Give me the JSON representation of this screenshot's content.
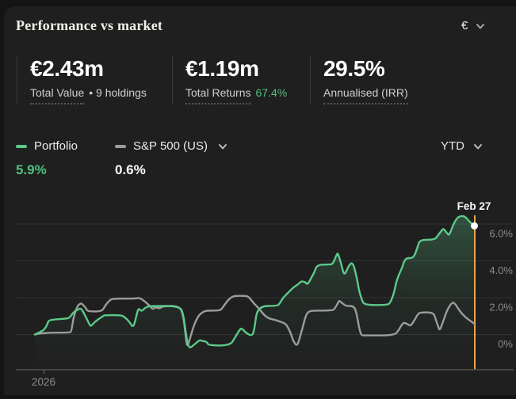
{
  "header": {
    "title": "Performance vs market",
    "currency": "€"
  },
  "stats": [
    {
      "value": "€2.43m",
      "label": "Total Value",
      "detail": "• 9 holdings"
    },
    {
      "value": "€1.19m",
      "label": "Total Returns",
      "highlight": "67.4%"
    },
    {
      "value": "29.5%",
      "label": "Annualised (IRR)"
    }
  ],
  "legend": {
    "portfolio": {
      "label": "Portfolio",
      "value": "5.9%"
    },
    "benchmark": {
      "label": "S&P 500 (US)",
      "value": "0.6%"
    },
    "period": "YTD"
  },
  "colors": {
    "accent_green": "#50c17c",
    "line_green": "#5cc98a",
    "line_gray": "#9c9c9c",
    "marker_orange": "#e7a44c",
    "grid": "#323232",
    "axis": "#505050",
    "axis_text": "#8c8c8c"
  },
  "chart_data": {
    "type": "line",
    "period": "YTD",
    "x_axis": {
      "start_label": "2026",
      "unit": "percent of period (Jan 1 – Feb 27)"
    },
    "y_axis": {
      "unit": "%",
      "ticks": [
        {
          "value": 6,
          "label": "6.0%"
        },
        {
          "value": 4,
          "label": "4.0%"
        },
        {
          "value": 2,
          "label": "2.0%"
        },
        {
          "value": 0,
          "label": "0%"
        }
      ]
    },
    "ylim": [
      -1.9,
      7.8
    ],
    "grid": true,
    "legend_position": "top-left",
    "marker": {
      "label": "Feb 27",
      "series": "Portfolio",
      "value": 5.9
    },
    "series": [
      {
        "name": "Portfolio",
        "color": "#5cc98a",
        "final_value_pct": 5.9,
        "area_fill": true,
        "points": [
          [
            0,
            0
          ],
          [
            1.4,
            0.15
          ],
          [
            2.3,
            0.3
          ],
          [
            2.9,
            0.6
          ],
          [
            3.2,
            0.8
          ],
          [
            6.9,
            0.85
          ],
          [
            7.9,
            0.9
          ],
          [
            8.7,
            1.2
          ],
          [
            10.1,
            1.4
          ],
          [
            10.6,
            1.4
          ],
          [
            11.4,
            1.05
          ],
          [
            12.5,
            0.5
          ],
          [
            12.8,
            0.45
          ],
          [
            13.7,
            0.7
          ],
          [
            15.5,
            1.0
          ],
          [
            15.9,
            1.05
          ],
          [
            19.7,
            1.05
          ],
          [
            20.4,
            0.95
          ],
          [
            21.5,
            0.7
          ],
          [
            22.4,
            0.35
          ],
          [
            23.1,
            1.0
          ],
          [
            23.6,
            1.45
          ],
          [
            24.2,
            1.25
          ],
          [
            24.9,
            1.4
          ],
          [
            25.5,
            1.5
          ],
          [
            26.4,
            1.55
          ],
          [
            33,
            1.55
          ],
          [
            33.8,
            1.1
          ],
          [
            34.3,
            0.2
          ],
          [
            35,
            -0.8
          ],
          [
            36.3,
            -0.55
          ],
          [
            37.5,
            -0.3
          ],
          [
            38.1,
            -0.35
          ],
          [
            39.2,
            -0.4
          ],
          [
            39.5,
            -0.6
          ],
          [
            44.4,
            -0.6
          ],
          [
            45.5,
            -0.2
          ],
          [
            46.6,
            0.25
          ],
          [
            47.1,
            0.35
          ],
          [
            48,
            0.1
          ],
          [
            49.5,
            -0.1
          ],
          [
            50,
            0.3
          ],
          [
            50.7,
            1.55
          ],
          [
            55.2,
            1.55
          ],
          [
            55.8,
            1.7
          ],
          [
            56.5,
            2.0
          ],
          [
            57.6,
            2.25
          ],
          [
            58.8,
            2.55
          ],
          [
            60.1,
            2.75
          ],
          [
            60.6,
            2.9
          ],
          [
            61.6,
            2.85
          ],
          [
            62.1,
            2.7
          ],
          [
            63,
            3.1
          ],
          [
            63.7,
            3.4
          ],
          [
            64.3,
            3.8
          ],
          [
            67.3,
            3.8
          ],
          [
            67.9,
            3.85
          ],
          [
            68.8,
            4.4
          ],
          [
            69,
            4.4
          ],
          [
            69.7,
            3.9
          ],
          [
            70.2,
            3.4
          ],
          [
            70.6,
            3.25
          ],
          [
            71.5,
            3.75
          ],
          [
            72.4,
            3.95
          ],
          [
            73.3,
            3.1
          ],
          [
            73.8,
            2.4
          ],
          [
            74.5,
            1.85
          ],
          [
            75.1,
            1.6
          ],
          [
            80.1,
            1.6
          ],
          [
            80.9,
            1.7
          ],
          [
            81.8,
            2.25
          ],
          [
            82.3,
            2.85
          ],
          [
            82.9,
            3.25
          ],
          [
            83.6,
            3.6
          ],
          [
            84.1,
            4.0
          ],
          [
            84.7,
            4.15
          ],
          [
            85.9,
            4.15
          ],
          [
            86.5,
            4.3
          ],
          [
            87.2,
            4.8
          ],
          [
            87.7,
            5.15
          ],
          [
            91,
            5.15
          ],
          [
            91.7,
            5.35
          ],
          [
            92.8,
            5.7
          ],
          [
            93.1,
            5.75
          ],
          [
            94,
            5.45
          ],
          [
            94.4,
            5.4
          ],
          [
            95.3,
            6.0
          ],
          [
            96.2,
            6.35
          ],
          [
            97.1,
            6.45
          ],
          [
            98,
            6.4
          ],
          [
            98.9,
            6.15
          ],
          [
            100,
            5.9
          ]
        ]
      },
      {
        "name": "S&P 500 (US)",
        "color": "#9c9c9c",
        "final_value_pct": 0.6,
        "area_fill": false,
        "points": [
          [
            0,
            0
          ],
          [
            1.8,
            0.1
          ],
          [
            7.9,
            0.1
          ],
          [
            8.3,
            0.15
          ],
          [
            8.8,
            0.95
          ],
          [
            9.6,
            1.5
          ],
          [
            10.1,
            1.65
          ],
          [
            10.6,
            1.7
          ],
          [
            11.4,
            1.5
          ],
          [
            11.9,
            1.3
          ],
          [
            12.5,
            1.25
          ],
          [
            15.2,
            1.25
          ],
          [
            15.9,
            1.5
          ],
          [
            16.4,
            1.7
          ],
          [
            17,
            1.85
          ],
          [
            17.7,
            1.95
          ],
          [
            23.1,
            1.95
          ],
          [
            23.6,
            2.0
          ],
          [
            24.5,
            1.9
          ],
          [
            25.5,
            1.7
          ],
          [
            26.2,
            1.55
          ],
          [
            26.9,
            1.35
          ],
          [
            27.4,
            1.5
          ],
          [
            28.3,
            1.4
          ],
          [
            29.2,
            1.55
          ],
          [
            33,
            1.55
          ],
          [
            33.8,
            1.0
          ],
          [
            34.3,
            0.0
          ],
          [
            34.7,
            -0.75
          ],
          [
            35.4,
            -0.15
          ],
          [
            36.3,
            0.55
          ],
          [
            37.2,
            1.0
          ],
          [
            38.1,
            1.2
          ],
          [
            39,
            1.3
          ],
          [
            42.1,
            1.3
          ],
          [
            42.6,
            1.4
          ],
          [
            43.9,
            1.85
          ],
          [
            44.9,
            2.05
          ],
          [
            45.7,
            2.1
          ],
          [
            48,
            2.1
          ],
          [
            48.7,
            2.05
          ],
          [
            49.8,
            1.7
          ],
          [
            51.1,
            1.4
          ],
          [
            52.2,
            1.05
          ],
          [
            53.4,
            0.85
          ],
          [
            54.7,
            0.8
          ],
          [
            55.8,
            0.7
          ],
          [
            57,
            0.6
          ],
          [
            57.6,
            0.4
          ],
          [
            58.3,
            0.05
          ],
          [
            58.8,
            -0.35
          ],
          [
            59.7,
            -0.65
          ],
          [
            60.3,
            -0.2
          ],
          [
            61,
            0.4
          ],
          [
            61.6,
            0.95
          ],
          [
            62.1,
            1.2
          ],
          [
            63,
            1.3
          ],
          [
            67.9,
            1.3
          ],
          [
            68.4,
            1.45
          ],
          [
            69.1,
            1.75
          ],
          [
            69.3,
            1.85
          ],
          [
            70,
            1.7
          ],
          [
            70.6,
            1.6
          ],
          [
            70.9,
            1.55
          ],
          [
            72.7,
            1.55
          ],
          [
            73.3,
            1.1
          ],
          [
            73.8,
            0.4
          ],
          [
            74.2,
            0.05
          ],
          [
            74.5,
            -0.05
          ],
          [
            75.1,
            -0.05
          ],
          [
            81.9,
            -0.05
          ],
          [
            82.9,
            0.25
          ],
          [
            83.6,
            0.55
          ],
          [
            84.1,
            0.65
          ],
          [
            85,
            0.55
          ],
          [
            85.6,
            0.45
          ],
          [
            86.5,
            0.8
          ],
          [
            87.2,
            1.1
          ],
          [
            87.7,
            1.2
          ],
          [
            90.8,
            1.2
          ],
          [
            91.3,
            0.8
          ],
          [
            91.9,
            0.4
          ],
          [
            92.2,
            0.2
          ],
          [
            93.1,
            0.8
          ],
          [
            94,
            1.4
          ],
          [
            94.9,
            1.7
          ],
          [
            95.5,
            1.75
          ],
          [
            96.8,
            1.25
          ],
          [
            98,
            0.95
          ],
          [
            99.1,
            0.75
          ],
          [
            100,
            0.6
          ]
        ]
      }
    ]
  }
}
